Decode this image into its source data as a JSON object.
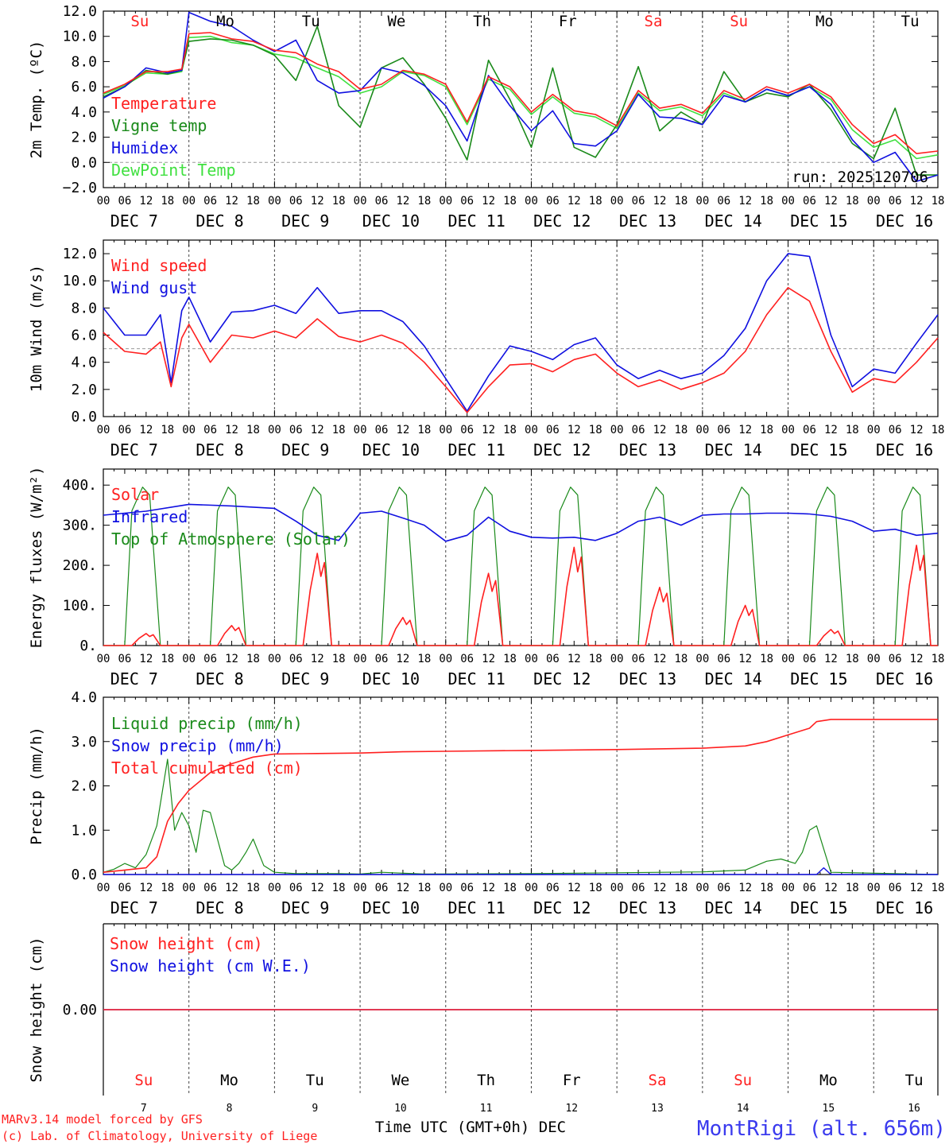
{
  "run_label": "run: 2025120706",
  "footer": {
    "model": "MARv3.14 model forced by GFS",
    "credit": "(c) Lab. of Climatology, University of Liege",
    "xlabel": "Time UTC (GMT+0h) DEC",
    "station": "MontRigi (alt. 656m)"
  },
  "days": [
    {
      "abbr": "Su",
      "date": "DEC  7",
      "num": "7",
      "weekend": true
    },
    {
      "abbr": "Mo",
      "date": "DEC  8",
      "num": "8",
      "weekend": false
    },
    {
      "abbr": "Tu",
      "date": "DEC  9",
      "num": "9",
      "weekend": false
    },
    {
      "abbr": "We",
      "date": "DEC 10",
      "num": "10",
      "weekend": false
    },
    {
      "abbr": "Th",
      "date": "DEC 11",
      "num": "11",
      "weekend": false
    },
    {
      "abbr": "Fr",
      "date": "DEC 12",
      "num": "12",
      "weekend": false
    },
    {
      "abbr": "Sa",
      "date": "DEC 13",
      "num": "13",
      "weekend": true
    },
    {
      "abbr": "Su",
      "date": "DEC 14",
      "num": "14",
      "weekend": true
    },
    {
      "abbr": "Mo",
      "date": "DEC 15",
      "num": "15",
      "weekend": false
    },
    {
      "abbr": "Tu",
      "date": "DEC 16",
      "num": "16",
      "weekend": false
    }
  ],
  "hour_ticks": [
    "00",
    "06",
    "12",
    "18"
  ],
  "colors": {
    "red": "#ff2020",
    "green": "#1a8a1a",
    "blue": "#1010e0",
    "lightgreen": "#40e040",
    "weekend": "#ff2020"
  },
  "chart_data": [
    {
      "id": "temp",
      "type": "line",
      "ylabel": "2m Temp. (ºC)",
      "ylim": [
        -2,
        12
      ],
      "ticks": [
        12,
        10,
        8,
        6,
        4,
        2,
        0,
        -2
      ],
      "tick_labels": [
        "12.0",
        "10.0",
        "8.0",
        "6.0",
        "4.0",
        "2.0",
        "0.0",
        "−2.0"
      ],
      "refline": 0,
      "legend": [
        "Temperature",
        "Vigne temp",
        "Humidex",
        "DewPoint Temp"
      ],
      "x_hours": [
        0,
        6,
        12,
        18,
        22,
        24,
        30,
        36,
        42,
        48,
        54,
        60,
        66,
        72,
        78,
        84,
        90,
        96,
        102,
        108,
        114,
        120,
        126,
        132,
        138,
        144,
        150,
        156,
        162,
        168,
        174,
        180,
        186,
        192,
        198,
        204,
        210,
        216,
        222,
        228,
        234
      ],
      "series": [
        {
          "name": "Temperature",
          "color": "red",
          "values": [
            5.5,
            6.2,
            7.2,
            7.2,
            7.4,
            10.2,
            10.3,
            9.8,
            9.6,
            8.9,
            8.7,
            7.8,
            7.2,
            5.8,
            6.2,
            7.3,
            7.0,
            6.2,
            3.2,
            6.8,
            6.0,
            4.0,
            5.4,
            4.1,
            3.8,
            2.9,
            5.7,
            4.3,
            4.6,
            3.9,
            5.7,
            5.0,
            6.0,
            5.5,
            6.2,
            5.2,
            3.0,
            1.5,
            2.2,
            0.7,
            0.9
          ]
        },
        {
          "name": "Vigne temp",
          "color": "green",
          "values": [
            5.2,
            6.0,
            7.3,
            7.0,
            7.3,
            9.6,
            9.8,
            9.7,
            9.3,
            8.5,
            6.5,
            10.8,
            4.5,
            2.8,
            7.5,
            8.3,
            6.2,
            3.5,
            0.2,
            8.1,
            5.0,
            1.2,
            7.5,
            1.2,
            0.4,
            3.0,
            7.6,
            2.5,
            4.0,
            3.0,
            7.2,
            4.8,
            5.5,
            5.2,
            6.2,
            4.2,
            1.5,
            0.3,
            4.3,
            -1.0,
            -1.0
          ]
        },
        {
          "name": "Humidex",
          "color": "blue",
          "values": [
            5.1,
            6.0,
            7.5,
            7.1,
            7.3,
            11.9,
            11.2,
            10.8,
            9.7,
            8.8,
            9.7,
            6.5,
            5.5,
            5.7,
            7.5,
            7.1,
            6.1,
            4.5,
            1.7,
            6.9,
            4.5,
            2.5,
            4.1,
            1.5,
            1.3,
            2.5,
            5.4,
            3.6,
            3.5,
            3.0,
            5.3,
            4.8,
            5.8,
            5.3,
            6.0,
            4.6,
            1.8,
            0.0,
            0.8,
            -1.5,
            -1.0
          ]
        },
        {
          "name": "DewPoint Temp",
          "color": "lightgreen",
          "values": [
            5.4,
            6.1,
            7.1,
            7.0,
            7.2,
            9.9,
            10.0,
            9.5,
            9.3,
            8.6,
            8.3,
            7.5,
            6.8,
            5.5,
            6.0,
            7.2,
            6.9,
            6.0,
            3.0,
            6.6,
            5.8,
            3.8,
            5.2,
            3.9,
            3.6,
            2.7,
            5.5,
            4.1,
            4.4,
            3.7,
            5.5,
            4.8,
            5.8,
            5.3,
            6.0,
            5.0,
            2.6,
            1.2,
            1.8,
            0.3,
            0.6
          ]
        }
      ]
    },
    {
      "id": "wind",
      "type": "line",
      "ylabel": "10m Wind (m/s)",
      "ylim": [
        0,
        13
      ],
      "ticks": [
        12,
        10,
        8,
        6,
        4,
        2,
        0
      ],
      "tick_labels": [
        "12.0",
        "10.0",
        "8.0",
        "6.0",
        "4.0",
        "2.0",
        "0.0"
      ],
      "refline": 5,
      "legend": [
        "Wind speed",
        "Wind gust"
      ],
      "x_hours": [
        0,
        6,
        12,
        16,
        19,
        22,
        24,
        30,
        36,
        42,
        48,
        54,
        60,
        66,
        72,
        78,
        84,
        90,
        96,
        102,
        108,
        114,
        120,
        126,
        132,
        138,
        144,
        150,
        156,
        162,
        168,
        174,
        180,
        186,
        192,
        198,
        204,
        210,
        216,
        222,
        228,
        234
      ],
      "series": [
        {
          "name": "Wind speed",
          "color": "red",
          "values": [
            6.2,
            4.8,
            4.6,
            5.5,
            2.2,
            5.8,
            6.8,
            4.0,
            6.0,
            5.8,
            6.3,
            5.8,
            7.2,
            5.9,
            5.5,
            6.0,
            5.4,
            4.0,
            2.2,
            0.3,
            2.2,
            3.8,
            3.9,
            3.3,
            4.2,
            4.6,
            3.2,
            2.2,
            2.7,
            2.0,
            2.5,
            3.2,
            4.8,
            7.5,
            9.5,
            8.5,
            4.8,
            1.8,
            2.8,
            2.5,
            4.0,
            5.8
          ]
        },
        {
          "name": "Wind gust",
          "color": "blue",
          "values": [
            8.0,
            6.0,
            6.0,
            7.5,
            2.5,
            7.8,
            8.8,
            5.5,
            7.7,
            7.8,
            8.2,
            7.6,
            9.5,
            7.6,
            7.8,
            7.8,
            7.0,
            5.2,
            2.8,
            0.4,
            3.0,
            5.2,
            4.8,
            4.2,
            5.3,
            5.8,
            3.8,
            2.8,
            3.4,
            2.8,
            3.2,
            4.5,
            6.5,
            10.0,
            12.0,
            11.8,
            6.0,
            2.2,
            3.5,
            3.2,
            5.4,
            7.5
          ]
        }
      ]
    },
    {
      "id": "energy",
      "type": "line",
      "ylabel": "Energy fluxes (W/m²)",
      "ylim": [
        0,
        440
      ],
      "ticks": [
        400,
        300,
        200,
        100,
        0
      ],
      "tick_labels": [
        "400.",
        "300.",
        "200.",
        "100.",
        "0."
      ],
      "legend": [
        "Solar",
        "Infrared",
        "Top of Atmosphere (Solar)"
      ],
      "toa_peak": 395,
      "solar_peaks": [
        30,
        50,
        230,
        70,
        180,
        245,
        145,
        100,
        40,
        250
      ],
      "infrared": {
        "x_hours": [
          0,
          12,
          24,
          36,
          48,
          54,
          60,
          66,
          72,
          78,
          84,
          90,
          96,
          102,
          108,
          114,
          120,
          126,
          132,
          138,
          144,
          150,
          156,
          162,
          168,
          174,
          180,
          186,
          192,
          198,
          204,
          210,
          216,
          222,
          228,
          234
        ],
        "values": [
          325,
          335,
          352,
          348,
          342,
          310,
          275,
          262,
          330,
          335,
          318,
          300,
          260,
          275,
          320,
          285,
          270,
          268,
          270,
          262,
          280,
          310,
          320,
          300,
          325,
          328,
          328,
          330,
          330,
          328,
          322,
          310,
          285,
          290,
          275,
          280
        ]
      },
      "series": [
        {
          "name": "Solar",
          "color": "red"
        },
        {
          "name": "Infrared",
          "color": "blue"
        },
        {
          "name": "Top of Atmosphere (Solar)",
          "color": "green"
        }
      ]
    },
    {
      "id": "precip",
      "type": "line",
      "ylabel": "Precip (mm/h)",
      "ylim": [
        0,
        4
      ],
      "ticks": [
        4,
        3,
        2,
        1,
        0
      ],
      "tick_labels": [
        "4.0",
        "3.0",
        "2.0",
        "1.0",
        "0.0"
      ],
      "legend": [
        "Liquid precip (mm/h)",
        "Snow precip (mm/h)",
        "Total cumulated (cm)"
      ],
      "liquid": {
        "x_hours": [
          0,
          3,
          6,
          9,
          12,
          15,
          18,
          20,
          22,
          24,
          26,
          28,
          30,
          32,
          34,
          36,
          38,
          40,
          42,
          45,
          48,
          54,
          60,
          66,
          72,
          78,
          84,
          90,
          120,
          168,
          180,
          186,
          190,
          194,
          196,
          198,
          200,
          204,
          234
        ],
        "values": [
          0.05,
          0.12,
          0.25,
          0.15,
          0.45,
          1.1,
          2.6,
          1.0,
          1.4,
          1.1,
          0.5,
          1.45,
          1.4,
          0.8,
          0.2,
          0.1,
          0.25,
          0.5,
          0.8,
          0.2,
          0.05,
          0.02,
          0.02,
          0.02,
          0.01,
          0.05,
          0.03,
          0.01,
          0.02,
          0.06,
          0.1,
          0.3,
          0.35,
          0.25,
          0.5,
          1.0,
          1.1,
          0.05,
          0.0
        ]
      },
      "snow": {
        "x_hours": [
          0,
          24,
          48,
          72,
          96,
          120,
          144,
          168,
          192,
          200,
          202,
          204,
          210,
          234
        ],
        "values": [
          0.0,
          0.0,
          0.0,
          0.0,
          0.0,
          0.0,
          0.0,
          0.0,
          0.0,
          0.0,
          0.15,
          0.0,
          0.0,
          0.0
        ]
      },
      "cumulated": {
        "x_hours": [
          0,
          6,
          12,
          15,
          18,
          21,
          24,
          30,
          36,
          42,
          48,
          60,
          72,
          84,
          96,
          120,
          144,
          168,
          180,
          186,
          192,
          198,
          200,
          204,
          234
        ],
        "values": [
          0.05,
          0.1,
          0.15,
          0.4,
          1.2,
          1.6,
          1.9,
          2.3,
          2.5,
          2.65,
          2.72,
          2.73,
          2.74,
          2.77,
          2.78,
          2.8,
          2.82,
          2.85,
          2.9,
          3.0,
          3.15,
          3.3,
          3.45,
          3.5,
          3.5
        ]
      },
      "series": [
        {
          "name": "Liquid precip (mm/h)",
          "color": "green"
        },
        {
          "name": "Snow precip (mm/h)",
          "color": "blue"
        },
        {
          "name": "Total cumulated (cm)",
          "color": "red"
        }
      ]
    },
    {
      "id": "snow",
      "type": "line",
      "ylabel": "Snow height (cm)",
      "ylim": [
        -1,
        1
      ],
      "ticks": [
        0
      ],
      "tick_labels": [
        "0.00"
      ],
      "legend": [
        "Snow height (cm)",
        "Snow height (cm W.E.)"
      ],
      "x_hours": [
        0,
        234
      ],
      "series": [
        {
          "name": "Snow height (cm)",
          "color": "red",
          "values": [
            0,
            0
          ]
        },
        {
          "name": "Snow height (cm W.E.)",
          "color": "blue",
          "values": [
            0,
            0
          ]
        }
      ]
    }
  ]
}
